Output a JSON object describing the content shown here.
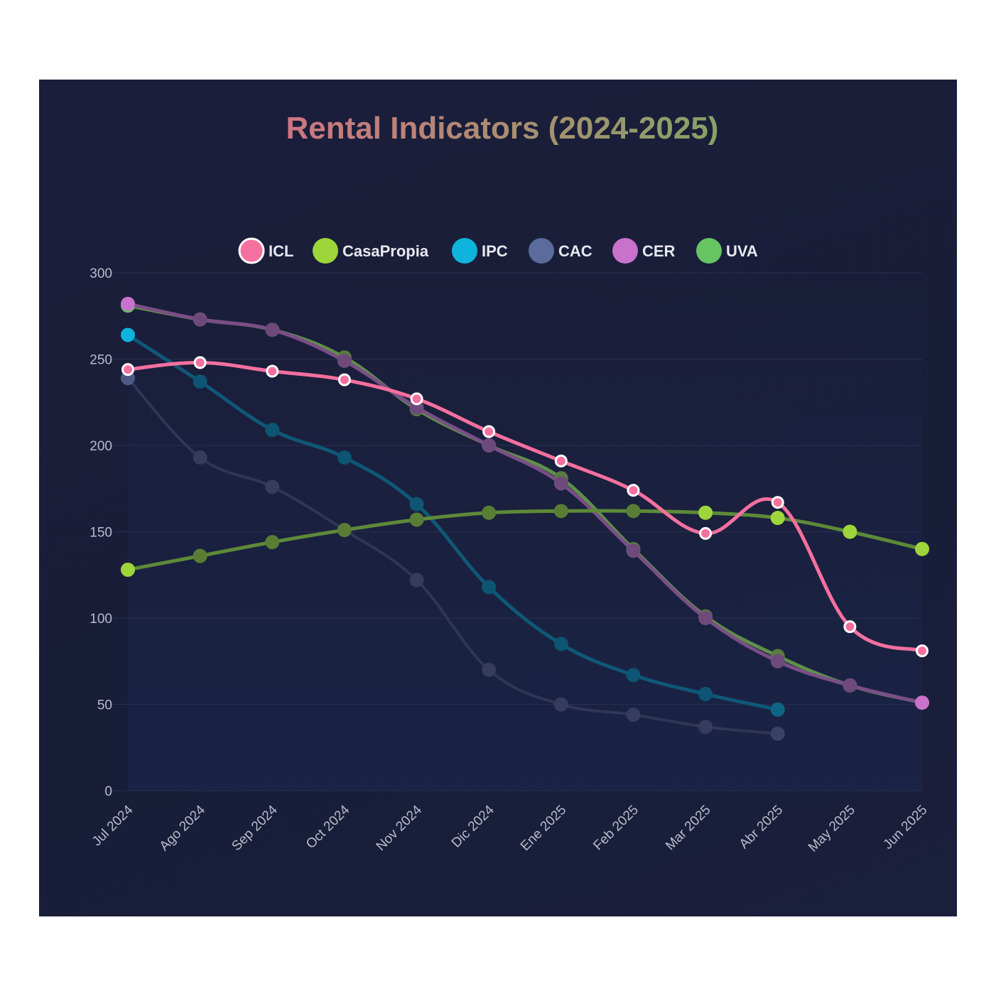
{
  "chart_data": {
    "type": "line",
    "title": "Rental Indicators (2024-2025)",
    "categories": [
      "Jul 2024",
      "Ago 2024",
      "Sep 2024",
      "Oct 2024",
      "Nov 2024",
      "Dic 2024",
      "Ene 2025",
      "Feb 2025",
      "Mar 2025",
      "Abr 2025",
      "May 2025",
      "Jun 2025"
    ],
    "ylim": [
      0,
      300
    ],
    "yticks": [
      0,
      50,
      100,
      150,
      200,
      250,
      300
    ],
    "grid": true,
    "legend_position": "top-center",
    "series": [
      {
        "name": "UVA",
        "color": "#66c463",
        "values": [
          281,
          273,
          267,
          251,
          221,
          200,
          181,
          140,
          101,
          78,
          61,
          51
        ]
      },
      {
        "name": "CER",
        "color": "#c872cc",
        "values": [
          282,
          273,
          267,
          249,
          222,
          200,
          178,
          139,
          100,
          75,
          61,
          51
        ]
      },
      {
        "name": "CAC",
        "color": "#5a6b9c",
        "values": [
          239,
          193,
          176,
          151,
          122,
          70,
          50,
          44,
          37,
          33,
          null,
          null
        ]
      },
      {
        "name": "IPC",
        "color": "#0fb4dc",
        "values": [
          264,
          237,
          209,
          193,
          166,
          118,
          85,
          67,
          56,
          47,
          null,
          null
        ]
      },
      {
        "name": "CasaPropia",
        "color": "#9ed53a",
        "values": [
          128,
          136,
          144,
          151,
          157,
          161,
          162,
          162,
          161,
          158,
          150,
          140
        ]
      },
      {
        "name": "ICL",
        "color": "#f4709f",
        "values": [
          244,
          248,
          243,
          238,
          227,
          208,
          191,
          174,
          149,
          167,
          95,
          81
        ]
      }
    ],
    "legend_order": [
      "ICL",
      "CasaPropia",
      "IPC",
      "CAC",
      "CER",
      "UVA"
    ]
  }
}
